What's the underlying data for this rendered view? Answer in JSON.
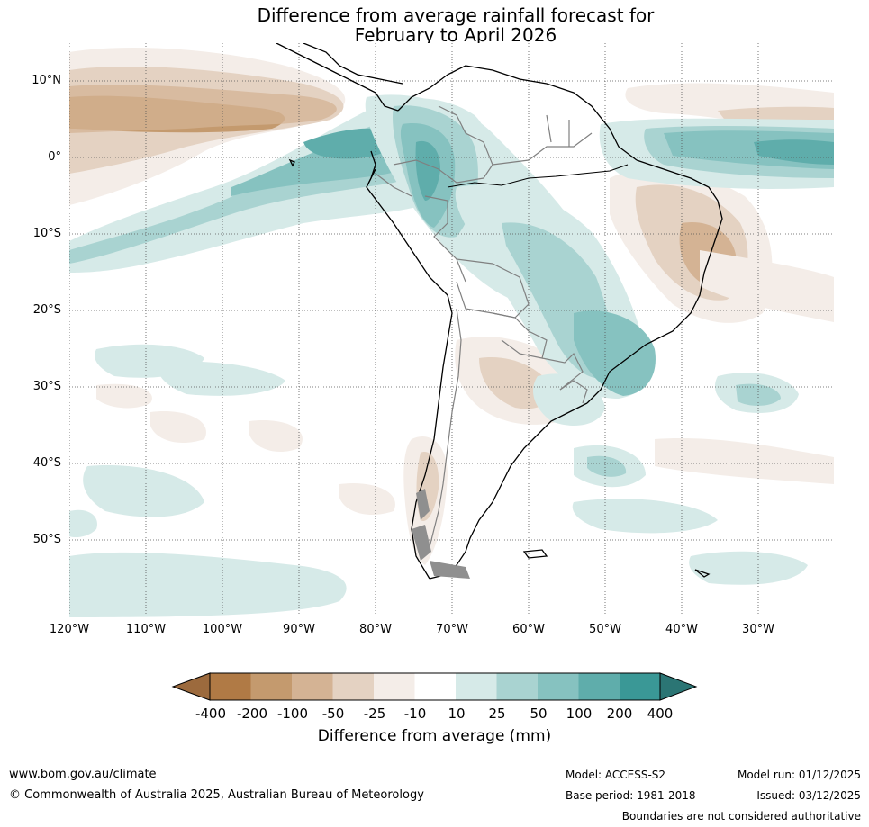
{
  "title": {
    "line1": "Difference from average rainfall forecast for",
    "line2": "February to April 2026"
  },
  "map": {
    "lat_labels": [
      "10°N",
      "0°",
      "10°S",
      "20°S",
      "30°S",
      "40°S",
      "50°S"
    ],
    "lon_labels": [
      "120°W",
      "110°W",
      "100°W",
      "90°W",
      "80°W",
      "70°W",
      "60°W",
      "50°W",
      "40°W",
      "30°W"
    ],
    "colors": {
      "dry_400": "#9c6a3d",
      "dry_200": "#b07a45",
      "dry_100": "#c49a6e",
      "dry_50": "#d4b394",
      "dry_25": "#e4d2c2",
      "dry_10": "#f4ede8",
      "neutral": "#ffffff",
      "wet_10": "#d6eae8",
      "wet_25": "#a9d3d1",
      "wet_50": "#86c2c0",
      "wet_100": "#5fadab",
      "wet_200": "#3a9896",
      "wet_400": "#2b7574"
    }
  },
  "colorbar": {
    "ticks": [
      "-400",
      "-200",
      "-100",
      "-50",
      "-25",
      "-10",
      "10",
      "25",
      "50",
      "100",
      "200",
      "400"
    ],
    "title": "Difference from average (mm)"
  },
  "footer": {
    "website": "www.bom.gov.au/climate",
    "copyright": "© Commonwealth of Australia 2025, Australian Bureau of Meteorology",
    "model": "Model: ACCESS-S2",
    "base_period": "Base period: 1981-2018",
    "model_run": "Model run: 01/12/2025",
    "issued": "Issued: 03/12/2025",
    "disclaimer": "Boundaries are not considered authoritative"
  }
}
